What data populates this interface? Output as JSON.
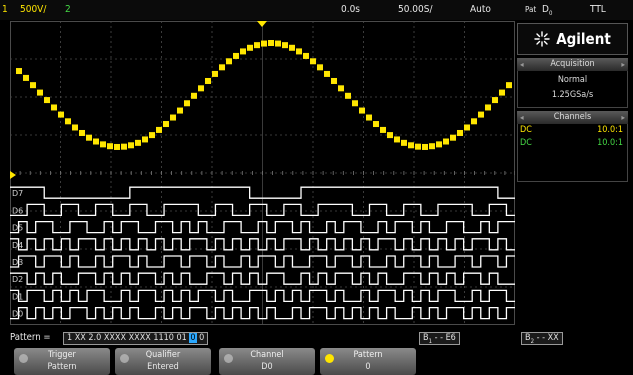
{
  "top_bar": {
    "channel": "1",
    "volts_per_div": "500V/",
    "ch2": "2",
    "delay": "0.0s",
    "time_per_div": "50.00S/",
    "mode": "Auto",
    "trig_label": "Pat",
    "trig_src": "D",
    "trig_src_sub": "0",
    "trig_level": "TTL"
  },
  "brand": {
    "name": "Agilent"
  },
  "acquisition": {
    "title": "Acquisition",
    "mode": "Normal",
    "rate": "1.25GSa/s"
  },
  "channels": {
    "title": "Channels",
    "rows": [
      {
        "coupling": "DC",
        "ratio": "10.0:1",
        "color": "#ffe600"
      },
      {
        "coupling": "DC",
        "ratio": "10.0:1",
        "color": "#45d945"
      }
    ]
  },
  "digital_labels": [
    "D7",
    "D6",
    "D5",
    "D4",
    "D3",
    "D2",
    "D1",
    "D0"
  ],
  "pattern_bar": {
    "prefix": "Pattern =",
    "pattern": "1 XX 2.0",
    "pattern_mid": "XXXX XXXX 1110 01",
    "cursor_bit": "0",
    "pattern_end": "0",
    "box1": "B",
    "box1_tail": "- - E6",
    "box2": "B",
    "box2_tail": "- - XX"
  },
  "softkeys": [
    {
      "label": "Trigger",
      "sub": "Pattern"
    },
    {
      "label": "Qualifier",
      "sub": "Entered"
    },
    {
      "label": "Channel",
      "sub": "D0"
    },
    {
      "label": "Pattern",
      "sub": "0"
    }
  ],
  "colors": {
    "analog": "#ffe600",
    "digital": "#ffffff",
    "digital_high_bus": "#8fd0ff",
    "grid": "#4a4a4a",
    "accent_green": "#45d945"
  },
  "waveform": {
    "type": "sine",
    "periods_visible": 1.6,
    "amplitude_div": 1.55
  }
}
